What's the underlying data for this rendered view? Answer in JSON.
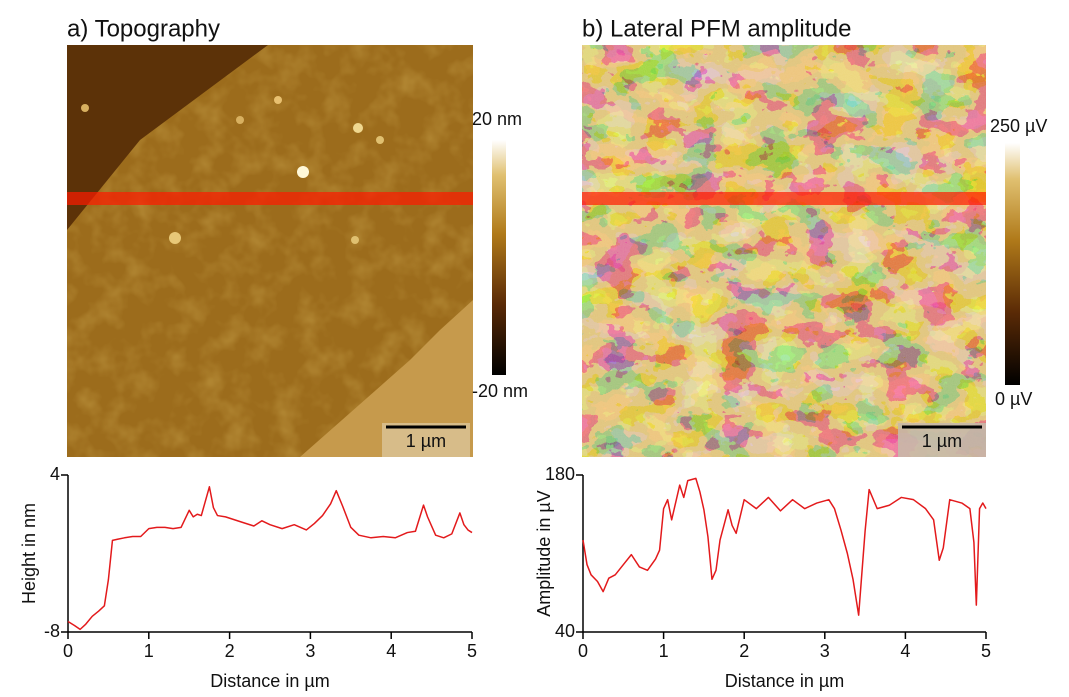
{
  "panels": [
    {
      "title": "a) Topography",
      "colorbar_max": "20 nm",
      "colorbar_min": "-20 nm",
      "scale_bar": "1 µm"
    },
    {
      "title": "b) Lateral PFM amplitude",
      "colorbar_max": "250 µV",
      "colorbar_min": "0 µV",
      "scale_bar": "1 µm"
    }
  ],
  "chart_data": [
    {
      "type": "line",
      "x_label": "Distance in µm",
      "y_label": "Height in nm",
      "x": [
        0,
        0.08,
        0.15,
        0.22,
        0.3,
        0.38,
        0.45,
        0.5,
        0.55,
        0.62,
        0.7,
        0.8,
        0.9,
        1.0,
        1.1,
        1.2,
        1.3,
        1.4,
        1.5,
        1.55,
        1.6,
        1.65,
        1.7,
        1.75,
        1.8,
        1.85,
        1.95,
        2.05,
        2.15,
        2.3,
        2.4,
        2.5,
        2.65,
        2.8,
        2.95,
        3.05,
        3.15,
        3.25,
        3.32,
        3.4,
        3.5,
        3.6,
        3.75,
        3.9,
        4.05,
        4.2,
        4.3,
        4.4,
        4.45,
        4.55,
        4.65,
        4.75,
        4.85,
        4.9,
        4.95,
        5.0
      ],
      "series": [
        {
          "color": "#e31a1c",
          "values": [
            -7.2,
            -7.5,
            -7.8,
            -7.4,
            -6.8,
            -6.4,
            -6.0,
            -4.0,
            -1.0,
            -0.9,
            -0.8,
            -0.7,
            -0.7,
            -0.1,
            0.0,
            0.0,
            -0.1,
            0.0,
            1.3,
            0.8,
            1.0,
            0.9,
            2.0,
            3.1,
            1.5,
            0.9,
            0.8,
            0.6,
            0.4,
            0.1,
            0.5,
            0.2,
            -0.1,
            0.2,
            -0.2,
            0.3,
            0.9,
            1.8,
            2.8,
            1.6,
            0.0,
            -0.6,
            -0.8,
            -0.7,
            -0.8,
            -0.4,
            -0.3,
            1.7,
            0.8,
            -0.6,
            -0.8,
            -0.5,
            1.1,
            0.2,
            -0.2,
            -0.4
          ]
        }
      ],
      "xlim": [
        0,
        5
      ],
      "xticks": [
        0,
        1,
        2,
        3,
        4,
        5
      ],
      "ylim": [
        -8,
        4
      ],
      "yticks": [
        -8,
        4
      ]
    },
    {
      "type": "line",
      "x_label": "Distance in µm",
      "y_label": "Amplitude in µV",
      "x": [
        0,
        0.05,
        0.1,
        0.18,
        0.25,
        0.32,
        0.4,
        0.5,
        0.6,
        0.7,
        0.8,
        0.9,
        0.95,
        1.0,
        1.05,
        1.1,
        1.2,
        1.25,
        1.3,
        1.4,
        1.45,
        1.5,
        1.55,
        1.6,
        1.65,
        1.7,
        1.8,
        1.85,
        1.9,
        2.0,
        2.15,
        2.3,
        2.45,
        2.6,
        2.75,
        2.9,
        3.05,
        3.12,
        3.2,
        3.28,
        3.35,
        3.42,
        3.5,
        3.55,
        3.65,
        3.8,
        3.95,
        4.1,
        4.25,
        4.35,
        4.42,
        4.47,
        4.55,
        4.7,
        4.8,
        4.85,
        4.88,
        4.92,
        4.96,
        5.0
      ],
      "series": [
        {
          "color": "#e31a1c",
          "values": [
            122,
            100,
            91,
            85,
            76,
            88,
            91,
            100,
            109,
            98,
            95,
            105,
            113,
            150,
            158,
            140,
            171,
            160,
            175,
            177,
            165,
            149,
            125,
            87,
            95,
            122,
            149,
            135,
            128,
            158,
            150,
            160,
            148,
            158,
            150,
            155,
            158,
            150,
            131,
            110,
            87,
            55,
            130,
            167,
            150,
            153,
            160,
            158,
            150,
            140,
            104,
            115,
            158,
            155,
            150,
            120,
            64,
            150,
            155,
            150
          ]
        }
      ],
      "xlim": [
        0,
        5
      ],
      "xticks": [
        0,
        1,
        2,
        3,
        4,
        5
      ],
      "ylim": [
        40,
        180
      ],
      "yticks": [
        40,
        180
      ]
    }
  ]
}
